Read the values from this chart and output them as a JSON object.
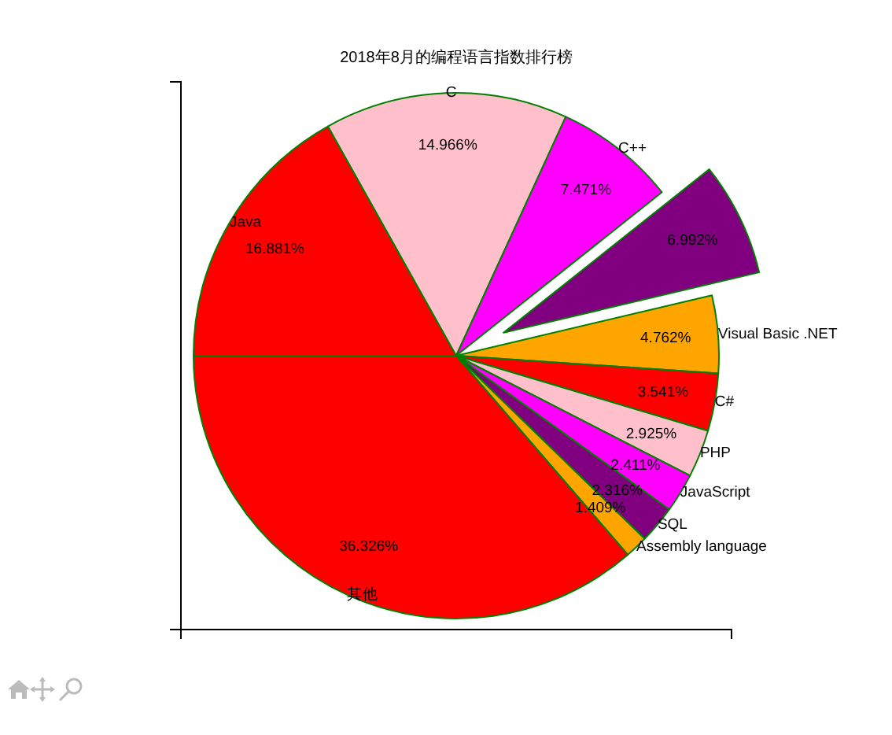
{
  "chart_data": {
    "type": "pie",
    "title": "2018年8月的编程语言指数排行榜",
    "categories": [
      "Java",
      "C",
      "C++",
      null,
      "Visual Basic .NET",
      "C#",
      "PHP",
      "JavaScript",
      "SQL",
      "Assembly language",
      "其他"
    ],
    "values": [
      16.881,
      14.966,
      7.471,
      6.992,
      4.762,
      3.541,
      2.925,
      2.411,
      2.316,
      1.409,
      36.326
    ],
    "colors": [
      "#ff0000",
      "#ffc0cb",
      "#ff00ff",
      "#800080",
      "#ffa500",
      "#ff0000",
      "#ffc0cb",
      "#ff00ff",
      "#800080",
      "#ffa500",
      "#ff0000"
    ],
    "value_labels": [
      "16.881%",
      "14.966%",
      "7.471%",
      "6.992%",
      "4.762%",
      "3.541%",
      "2.925%",
      "2.411%",
      "2.316%",
      "1.409%",
      "36.326%"
    ]
  }
}
